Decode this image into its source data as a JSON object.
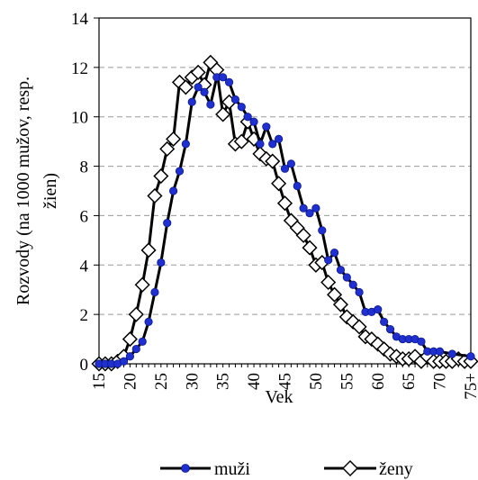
{
  "chart_data": {
    "type": "line",
    "title": "",
    "xlabel": "Vek",
    "ylabel_lines": [
      "Rozvody (na 1000 mužov, resp.",
      "žien)"
    ],
    "ylim": [
      0,
      14
    ],
    "yticks": [
      0,
      2,
      4,
      6,
      8,
      10,
      12,
      14
    ],
    "xlim": [
      15,
      75
    ],
    "xtick_values": [
      15,
      20,
      25,
      30,
      35,
      40,
      45,
      50,
      55,
      60,
      65,
      70,
      75
    ],
    "xtick_labels": [
      "15",
      "20",
      "25",
      "30",
      "35",
      "40",
      "45",
      "50",
      "55",
      "60",
      "65",
      "70",
      "75+"
    ],
    "grid": "horizontal-dashed",
    "legend_position": "bottom",
    "series": [
      {
        "name": "muži",
        "marker": "filled-circle",
        "color": "#000000",
        "marker_color": "#1f2fd0",
        "x": [
          15,
          16,
          17,
          18,
          19,
          20,
          21,
          22,
          23,
          24,
          25,
          26,
          27,
          28,
          29,
          30,
          31,
          32,
          33,
          34,
          35,
          36,
          37,
          38,
          39,
          40,
          41,
          42,
          43,
          44,
          45,
          46,
          47,
          48,
          49,
          50,
          51,
          52,
          53,
          54,
          55,
          56,
          57,
          58,
          59,
          60,
          61,
          62,
          63,
          64,
          65,
          66,
          67,
          68,
          69,
          70,
          72,
          75
        ],
        "y": [
          0,
          0,
          0,
          0,
          0.1,
          0.3,
          0.6,
          0.9,
          1.7,
          2.9,
          4.1,
          5.7,
          7.0,
          7.8,
          8.9,
          10.6,
          11.2,
          11.0,
          10.5,
          11.6,
          11.6,
          11.4,
          10.7,
          10.4,
          10.0,
          9.8,
          8.9,
          9.6,
          8.9,
          9.1,
          7.9,
          8.1,
          7.2,
          6.3,
          6.1,
          6.3,
          5.4,
          4.2,
          4.5,
          3.8,
          3.5,
          3.2,
          2.9,
          2.1,
          2.1,
          2.2,
          1.7,
          1.4,
          1.1,
          1.0,
          1.0,
          1.0,
          0.9,
          0.5,
          0.5,
          0.5,
          0.4,
          0.3
        ]
      },
      {
        "name": "ženy",
        "marker": "hollow-diamond",
        "color": "#000000",
        "marker_color": "#000000",
        "x": [
          15,
          16,
          17,
          18,
          19,
          20,
          21,
          22,
          23,
          24,
          25,
          26,
          27,
          28,
          29,
          30,
          31,
          32,
          33,
          34,
          35,
          36,
          37,
          38,
          39,
          40,
          41,
          42,
          43,
          44,
          45,
          46,
          47,
          48,
          49,
          50,
          51,
          52,
          53,
          54,
          55,
          56,
          57,
          58,
          59,
          60,
          61,
          62,
          63,
          64,
          65,
          66,
          67,
          68,
          69,
          70,
          71,
          72,
          73,
          74,
          75
        ],
        "y": [
          0,
          0,
          0,
          0.1,
          0.3,
          1.0,
          2.0,
          3.2,
          4.6,
          6.8,
          7.6,
          8.7,
          9.1,
          11.4,
          11.2,
          11.6,
          11.8,
          11.3,
          12.2,
          11.9,
          10.1,
          10.6,
          8.9,
          9.0,
          9.8,
          9.1,
          8.5,
          8.3,
          8.2,
          7.3,
          6.5,
          5.8,
          5.5,
          5.2,
          4.7,
          4.0,
          4.1,
          3.3,
          2.8,
          2.4,
          1.9,
          1.7,
          1.5,
          1.1,
          1.0,
          0.8,
          0.6,
          0.4,
          0.3,
          0.2,
          0.2,
          0.3,
          0.1,
          0.3,
          0.1,
          0.1,
          0.1,
          0.1,
          0.2,
          0.1,
          0.1
        ]
      }
    ]
  }
}
